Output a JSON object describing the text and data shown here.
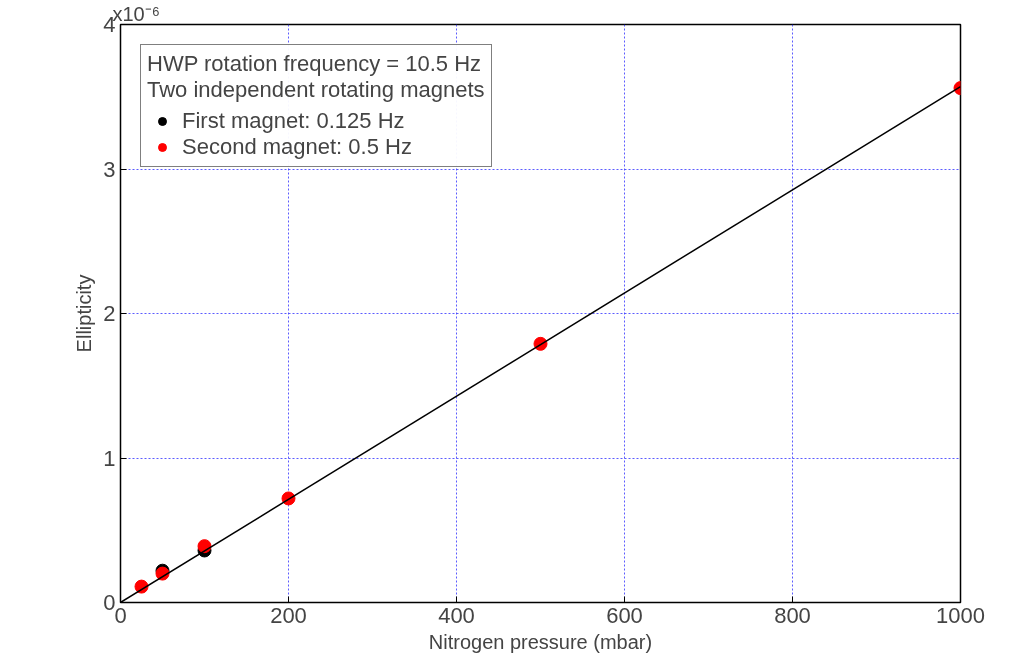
{
  "chart_data": {
    "type": "scatter",
    "xlabel": "Nitrogen pressure (mbar)",
    "ylabel": "Ellipticity",
    "legend_title": "HWP rotation frequency = 10.5 Hz\nTwo independent rotating magnets",
    "series": [
      {
        "name": "First magnet: 0.125 Hz",
        "color": "#000000",
        "marker": "circle",
        "x": [
          50,
          100
        ],
        "values": [
          0.22,
          0.36
        ]
      },
      {
        "name": "Second magnet: 0.5 Hz",
        "color": "#ff0000",
        "marker": "circle",
        "x": [
          25,
          50,
          100,
          200,
          500,
          1000
        ],
        "values": [
          0.11,
          0.2,
          0.39,
          0.72,
          1.79,
          3.56
        ]
      },
      {
        "type": "line",
        "color": "#000000",
        "x": [
          0,
          1000
        ],
        "values": [
          0,
          3.57
        ]
      }
    ],
    "xlim": [
      0,
      1000
    ],
    "xticks": [
      0,
      200,
      400,
      600,
      800,
      1000
    ],
    "ylim": [
      0,
      4
    ],
    "yticks": [
      0,
      1,
      2,
      3,
      4
    ],
    "annotations": [
      "x10⁻⁶"
    ],
    "grid": true,
    "legend": "top left"
  }
}
